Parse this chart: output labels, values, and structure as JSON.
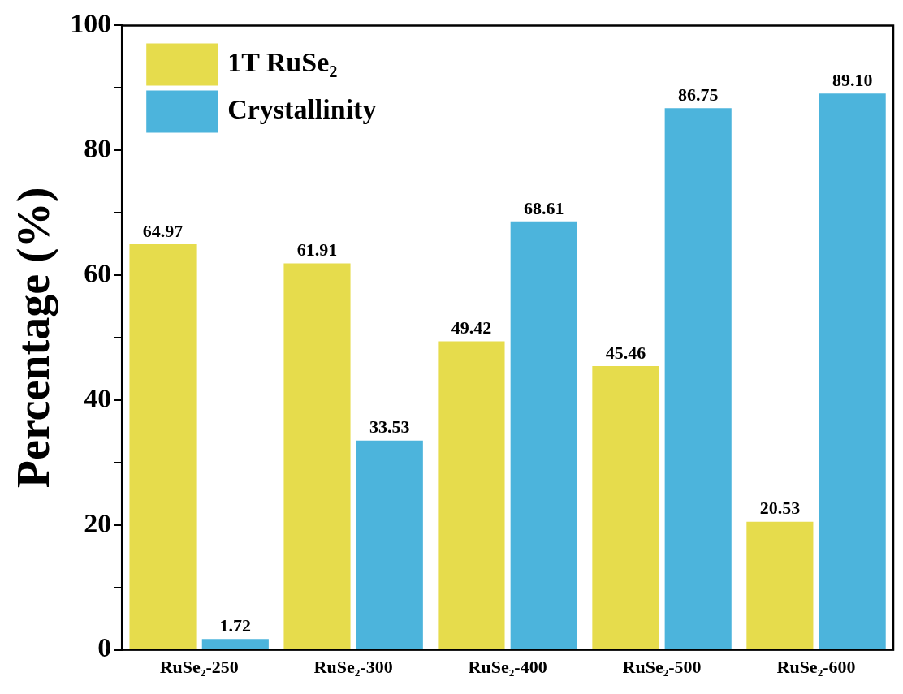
{
  "chart_data": {
    "type": "bar",
    "ylabel": "Percentage (%)",
    "categories": [
      "RuSe₂-250",
      "RuSe₂-300",
      "RuSe₂-400",
      "RuSe₂-500",
      "RuSe₂-600"
    ],
    "series": [
      {
        "name": "1T RuSe₂",
        "color": "#e6dc4c",
        "values": [
          64.97,
          61.91,
          49.42,
          45.46,
          20.53
        ],
        "value_labels": [
          "64.97",
          "61.91",
          "49.42",
          "45.46",
          "20.53"
        ]
      },
      {
        "name": "Crystallinity",
        "color": "#4cb4dc",
        "values": [
          1.72,
          33.53,
          68.61,
          86.75,
          89.1
        ],
        "value_labels": [
          "1.72",
          "33.53",
          "68.61",
          "86.75",
          "89.10"
        ]
      }
    ],
    "ylim": [
      0,
      100
    ],
    "yticks": [
      0,
      {
        "value": 10,
        "label": null
      },
      20,
      {
        "value": 30,
        "label": null
      },
      40,
      {
        "value": 50,
        "label": null
      },
      60,
      {
        "value": 70,
        "label": null
      },
      80,
      {
        "value": 90,
        "label": null
      },
      100
    ],
    "legend": "top left",
    "grid": false
  }
}
